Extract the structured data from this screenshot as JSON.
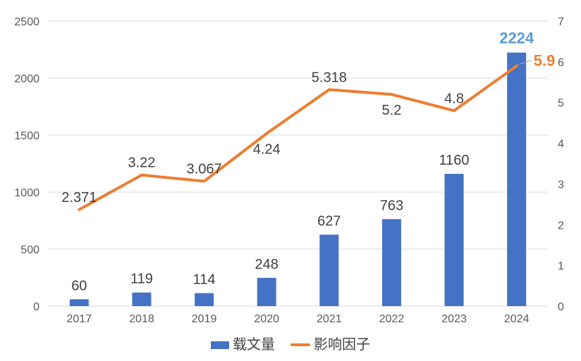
{
  "chart_data": {
    "type": "combo",
    "title": "",
    "categories": [
      "2017",
      "2018",
      "2019",
      "2020",
      "2021",
      "2022",
      "2023",
      "2024"
    ],
    "series": [
      {
        "name": "载文量",
        "type": "bar",
        "axis": "left",
        "color": "#4472C4",
        "values": [
          60,
          119,
          114,
          248,
          627,
          763,
          1160,
          2224
        ],
        "labels": [
          "60",
          "119",
          "114",
          "248",
          "627",
          "763",
          "1160",
          "2224"
        ],
        "emphasize_last": true
      },
      {
        "name": "影响因子",
        "type": "line",
        "axis": "right",
        "color": "#ED7D31",
        "values": [
          2.371,
          3.22,
          3.067,
          4.24,
          5.318,
          5.2,
          4.8,
          5.9
        ],
        "labels": [
          "2.371",
          "3.22",
          "3.067",
          "4.24",
          "5.318",
          "5.2",
          "4.8",
          "5.9"
        ],
        "label_placement": [
          "above",
          "above",
          "above",
          "below",
          "above",
          "below",
          "above",
          "right"
        ],
        "emphasize_last": true
      }
    ],
    "left_axis": {
      "min": 0,
      "max": 2500,
      "step": 500,
      "ticks": [
        "0",
        "500",
        "1000",
        "1500",
        "2000",
        "2500"
      ]
    },
    "right_axis": {
      "min": 0,
      "max": 7,
      "step": 1,
      "ticks": [
        "0",
        "1",
        "2",
        "3",
        "4",
        "5",
        "6",
        "7"
      ]
    },
    "grid": true,
    "legend_position": "bottom",
    "emphasis": {
      "bar_last_label_color": "#5B9BD5",
      "line_last_label_color": "#ED7D31",
      "leader_line_color": "#A6A6A6"
    },
    "colors": {
      "bar": "#4472C4",
      "line": "#ED7D31",
      "gridline": "#D9D9D9",
      "axis_text": "#595959",
      "data_label": "#404040",
      "background": "#FFFFFF"
    }
  },
  "legend": {
    "items": [
      {
        "label": "载文量",
        "swatch": "rect",
        "color": "#4472C4"
      },
      {
        "label": "影响因子",
        "swatch": "line",
        "color": "#ED7D31"
      }
    ]
  }
}
